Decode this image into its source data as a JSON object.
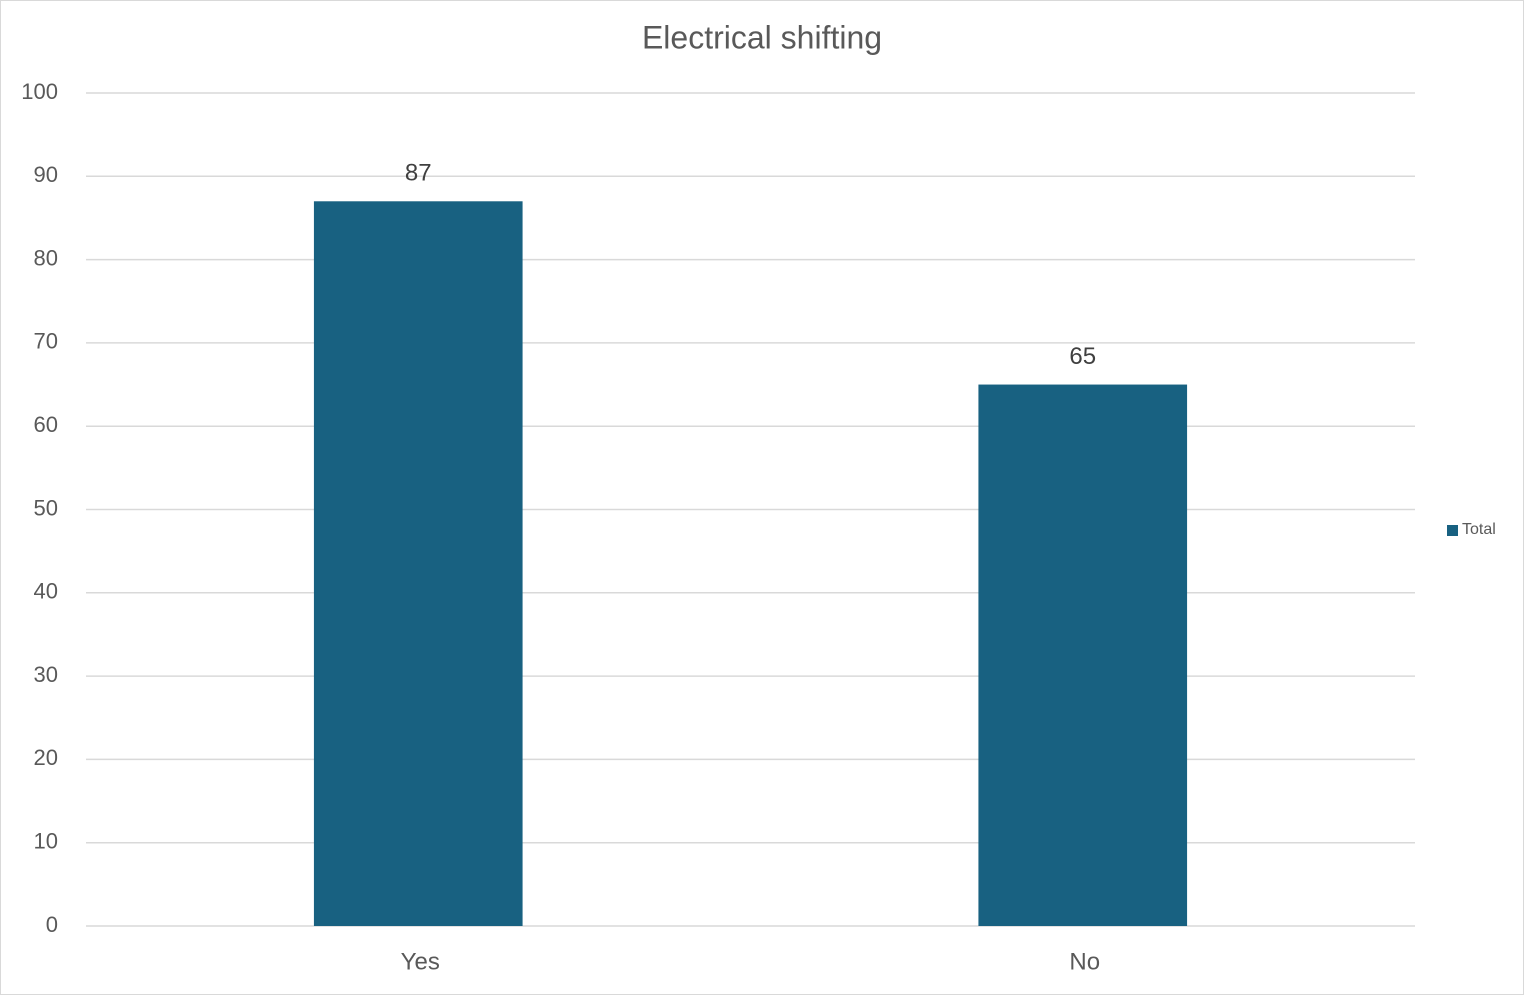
{
  "chart_data": {
    "type": "bar",
    "title": "Electrical shifting",
    "categories": [
      "Yes",
      "No"
    ],
    "series": [
      {
        "name": "Total",
        "color": "#186181",
        "values": [
          87,
          65
        ]
      }
    ],
    "ylim": [
      0,
      100
    ],
    "yticks": [
      0,
      10,
      20,
      30,
      40,
      50,
      60,
      70,
      80,
      90,
      100
    ],
    "grid": true,
    "legend": "right",
    "data_labels": true
  }
}
